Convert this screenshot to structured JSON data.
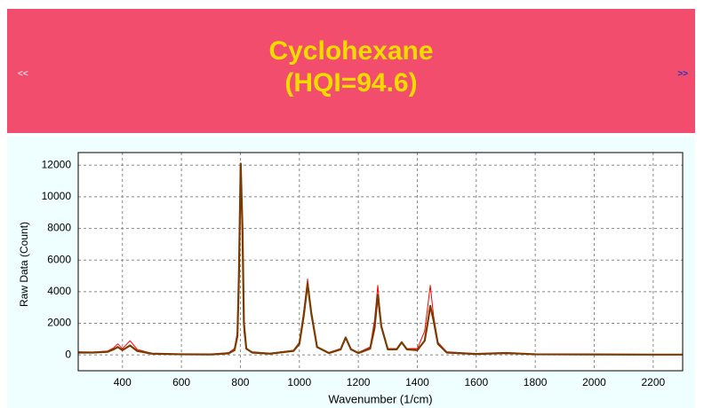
{
  "header": {
    "title": "Cyclohexane",
    "subtitle": "(HQI=94.6)",
    "prev": "<<",
    "next": ">>"
  },
  "chart_data": {
    "type": "line",
    "xlabel": "Wavenumber (1/cm)",
    "ylabel": "Raw Data (Count)",
    "x": [
      250,
      300,
      350,
      370,
      384,
      400,
      426,
      450,
      500,
      600,
      700,
      760,
      780,
      790,
      795,
      801,
      807,
      812,
      820,
      840,
      900,
      980,
      1000,
      1015,
      1028,
      1040,
      1060,
      1100,
      1140,
      1157,
      1175,
      1200,
      1240,
      1255,
      1266,
      1278,
      1300,
      1330,
      1347,
      1365,
      1400,
      1425,
      1435,
      1444,
      1455,
      1470,
      1500,
      1600,
      1700,
      1800,
      2000,
      2200,
      2300
    ],
    "series": [
      {
        "color": "#ff0000",
        "values": [
          200,
          180,
          250,
          450,
          700,
          400,
          900,
          350,
          100,
          50,
          40,
          150,
          400,
          1500,
          6000,
          12000,
          7000,
          1500,
          400,
          200,
          100,
          300,
          800,
          2800,
          4800,
          2500,
          500,
          150,
          400,
          1100,
          400,
          150,
          500,
          2200,
          4400,
          1800,
          400,
          400,
          800,
          400,
          400,
          1500,
          3000,
          4400,
          2500,
          800,
          200,
          80,
          80,
          50,
          30,
          20,
          20
        ]
      },
      {
        "color": "#7a3a00",
        "values": [
          150,
          150,
          200,
          350,
          500,
          300,
          600,
          250,
          80,
          40,
          30,
          100,
          300,
          1200,
          5000,
          12100,
          8000,
          2000,
          400,
          150,
          80,
          250,
          700,
          2500,
          4500,
          2700,
          500,
          120,
          350,
          1100,
          350,
          120,
          400,
          1700,
          3800,
          1800,
          350,
          350,
          800,
          350,
          300,
          900,
          2000,
          3100,
          2200,
          700,
          150,
          60,
          120,
          40,
          30,
          20,
          20
        ]
      }
    ],
    "xlim": [
      250,
      2300
    ],
    "ylim": [
      -1000,
      12800
    ],
    "xticks": [
      400,
      600,
      800,
      1000,
      1200,
      1400,
      1600,
      1800,
      2000,
      2200
    ],
    "yticks": [
      0,
      2000,
      4000,
      6000,
      8000,
      10000,
      12000
    ],
    "grid": true
  }
}
